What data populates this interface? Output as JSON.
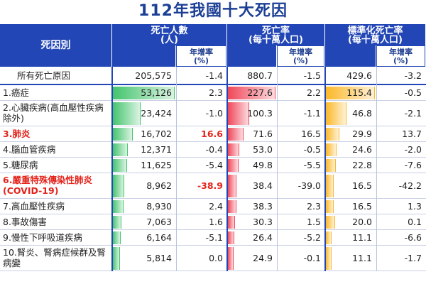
{
  "title": "112年我國十大死因",
  "headers": {
    "cause": "死因別",
    "deaths": "死亡人數\n(人)",
    "rate": "死亡率\n(每十萬人口)",
    "std_rate": "標準化死亡率\n(每十萬人口)",
    "growth": "年增率\n(%)"
  },
  "colors": {
    "header_bg": "#2246b5",
    "title": "#1b3f95",
    "deaths_bar": "#44c46d",
    "rate_bar": "#f0475a",
    "std_bar": "#fbb829",
    "highlight": "#e3231b"
  },
  "chart_data": {
    "type": "table",
    "title": "112年我國十大死因",
    "columns": [
      "死因別",
      "死亡人數(人)",
      "年增率(%)",
      "死亡率(每十萬人口)",
      "年增率(%)",
      "標準化死亡率(每十萬人口)",
      "年增率(%)"
    ],
    "total": {
      "cause": "所有死亡原因",
      "deaths": "205,575",
      "deaths_growth": "-1.4",
      "rate": "880.7",
      "rate_growth": "-1.5",
      "std_rate": "429.6",
      "std_growth": "-3.2"
    },
    "rows": [
      {
        "cause": "1.癌症",
        "deaths": "53,126",
        "deaths_v": 53126,
        "deaths_growth": "2.3",
        "rate": "227.6",
        "rate_v": 227.6,
        "rate_growth": "2.2",
        "std_rate": "115.4",
        "std_v": 115.4,
        "std_growth": "-0.5",
        "highlight": false,
        "growth_highlight": false
      },
      {
        "cause": "2.心臟疾病(高血壓性疾病除外)",
        "deaths": "23,424",
        "deaths_v": 23424,
        "deaths_growth": "-1.0",
        "rate": "100.3",
        "rate_v": 100.3,
        "rate_growth": "-1.1",
        "std_rate": "46.8",
        "std_v": 46.8,
        "std_growth": "-2.1",
        "highlight": false,
        "growth_highlight": false
      },
      {
        "cause": "3.肺炎",
        "deaths": "16,702",
        "deaths_v": 16702,
        "deaths_growth": "16.6",
        "rate": "71.6",
        "rate_v": 71.6,
        "rate_growth": "16.5",
        "std_rate": "29.9",
        "std_v": 29.9,
        "std_growth": "13.7",
        "highlight": true,
        "growth_highlight": true
      },
      {
        "cause": "4.腦血管疾病",
        "deaths": "12,371",
        "deaths_v": 12371,
        "deaths_growth": "-0.4",
        "rate": "53.0",
        "rate_v": 53.0,
        "rate_growth": "-0.5",
        "std_rate": "24.6",
        "std_v": 24.6,
        "std_growth": "-2.0",
        "highlight": false,
        "growth_highlight": false
      },
      {
        "cause": "5.糖尿病",
        "deaths": "11,625",
        "deaths_v": 11625,
        "deaths_growth": "-5.4",
        "rate": "49.8",
        "rate_v": 49.8,
        "rate_growth": "-5.5",
        "std_rate": "22.8",
        "std_v": 22.8,
        "std_growth": "-7.6",
        "highlight": false,
        "growth_highlight": false
      },
      {
        "cause": "6.嚴重特殊傳染性肺炎(COVID-19)",
        "deaths": "8,962",
        "deaths_v": 8962,
        "deaths_growth": "-38.9",
        "rate": "38.4",
        "rate_v": 38.4,
        "rate_growth": "-39.0",
        "std_rate": "16.5",
        "std_v": 16.5,
        "std_growth": "-42.2",
        "highlight": true,
        "growth_highlight": true
      },
      {
        "cause": "7.高血壓性疾病",
        "deaths": "8,930",
        "deaths_v": 8930,
        "deaths_growth": "2.4",
        "rate": "38.3",
        "rate_v": 38.3,
        "rate_growth": "2.3",
        "std_rate": "16.5",
        "std_v": 16.5,
        "std_growth": "1.3",
        "highlight": false,
        "growth_highlight": false
      },
      {
        "cause": "8.事故傷害",
        "deaths": "7,063",
        "deaths_v": 7063,
        "deaths_growth": "1.6",
        "rate": "30.3",
        "rate_v": 30.3,
        "rate_growth": "1.5",
        "std_rate": "20.0",
        "std_v": 20.0,
        "std_growth": "0.1",
        "highlight": false,
        "growth_highlight": false
      },
      {
        "cause": "9.慢性下呼吸道疾病",
        "deaths": "6,164",
        "deaths_v": 6164,
        "deaths_growth": "-5.1",
        "rate": "26.4",
        "rate_v": 26.4,
        "rate_growth": "-5.2",
        "std_rate": "11.1",
        "std_v": 11.1,
        "std_growth": "-6.6",
        "highlight": false,
        "growth_highlight": false
      },
      {
        "cause": "10.腎炎、腎病症候群及腎病變",
        "deaths": "5,814",
        "deaths_v": 5814,
        "deaths_growth": "0.0",
        "rate": "24.9",
        "rate_v": 24.9,
        "rate_growth": "-0.1",
        "std_rate": "11.1",
        "std_v": 11.1,
        "std_growth": "-1.7",
        "highlight": false,
        "growth_highlight": false
      }
    ]
  }
}
